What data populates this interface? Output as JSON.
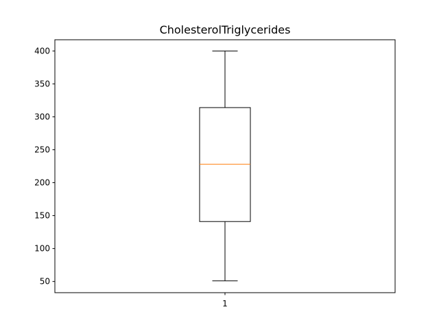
{
  "chart_data": {
    "type": "box",
    "title": "CholesterolTriglycerides",
    "xlabel": "",
    "ylabel": "",
    "categories": [
      "1"
    ],
    "boxes": [
      {
        "label": "1",
        "whisker_low": 51,
        "q1": 141,
        "median": 228,
        "q3": 314,
        "whisker_high": 400
      }
    ],
    "ylim": [
      33,
      417
    ],
    "yticks": [
      50,
      100,
      150,
      200,
      250,
      300,
      350,
      400
    ],
    "grid": false,
    "colors": {
      "box": "#000000",
      "median": "#ff7f0e",
      "whisker": "#000000"
    }
  }
}
